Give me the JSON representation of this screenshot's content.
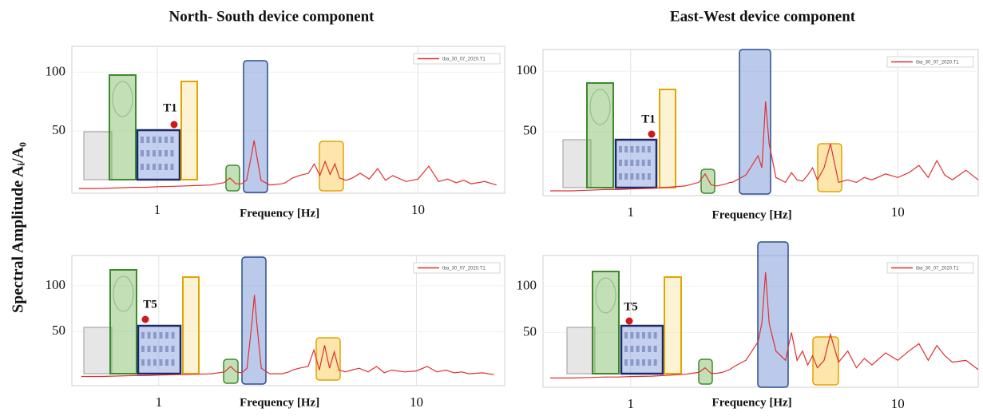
{
  "column_titles": [
    "North- South device component",
    "East-West device component"
  ],
  "y_label": "Spectral Amplitude Aᵢ/A₀",
  "chart_data": [
    {
      "type": "line",
      "x_label": "Frequency [Hz]",
      "annotation": "T1",
      "log_x": true,
      "grid": true,
      "xlim": [
        0.47,
        21.5
      ],
      "ylim": [
        -3,
        122
      ],
      "xticks": [
        1,
        10
      ],
      "yticks": [
        50,
        100
      ],
      "series": [
        {
          "name": "tba_30_07_2020.T1",
          "color": "#e03030",
          "x": [
            0.5,
            0.6,
            0.7,
            0.8,
            0.9,
            1.0,
            1.2,
            1.4,
            1.6,
            1.8,
            1.9,
            2.0,
            2.1,
            2.2,
            2.3,
            2.35,
            2.4,
            2.5,
            2.7,
            3.0,
            3.1,
            3.2,
            3.3,
            3.5,
            3.8,
            4.0,
            4.2,
            4.4,
            4.6,
            4.8,
            5.0,
            5.3,
            5.6,
            6.0,
            6.5,
            7.0,
            7.5,
            8.0,
            9.0,
            10,
            11,
            12,
            13,
            14,
            15,
            16,
            18,
            20
          ],
          "values": [
            1,
            1,
            1.5,
            2,
            2,
            2.5,
            3,
            3.5,
            4,
            6,
            10,
            5,
            5,
            8,
            30,
            42,
            30,
            8,
            4,
            5,
            6,
            8,
            10,
            12,
            14,
            22,
            12,
            24,
            13,
            22,
            10,
            8,
            10,
            14,
            9,
            18,
            8,
            12,
            7,
            9,
            20,
            7,
            9,
            6,
            8,
            5,
            7,
            4
          ]
        }
      ]
    },
    {
      "type": "line",
      "x_label": "Frequency [Hz]",
      "annotation": "T1",
      "log_x": true,
      "grid": true,
      "xlim": [
        0.47,
        20
      ],
      "ylim": [
        -3,
        118
      ],
      "xticks": [
        1,
        10
      ],
      "yticks": [
        50,
        100
      ],
      "series": [
        {
          "name": "tba_30_07_2020.T1",
          "color": "#e03030",
          "x": [
            0.5,
            0.6,
            0.7,
            0.8,
            0.9,
            1.0,
            1.2,
            1.4,
            1.6,
            1.8,
            1.9,
            2.0,
            2.1,
            2.2,
            2.3,
            2.35,
            2.4,
            2.5,
            2.7,
            3.0,
            3.1,
            3.2,
            3.3,
            3.5,
            3.8,
            4.0,
            4.2,
            4.4,
            4.6,
            4.8,
            5.0,
            5.3,
            5.6,
            6.0,
            6.5,
            7.0,
            7.5,
            8.0,
            9.0,
            10,
            11,
            12,
            13,
            14,
            15,
            16,
            18,
            20
          ],
          "values": [
            1,
            1,
            1.5,
            2,
            2,
            2.5,
            3,
            4,
            5,
            8,
            15,
            6,
            5,
            6,
            7,
            8,
            8,
            10,
            14,
            30,
            20,
            75,
            40,
            12,
            8,
            16,
            10,
            9,
            14,
            20,
            10,
            20,
            40,
            8,
            10,
            8,
            12,
            10,
            15,
            12,
            16,
            22,
            12,
            26,
            14,
            10,
            18,
            10
          ]
        }
      ]
    },
    {
      "type": "line",
      "x_label": "Frequency [Hz]",
      "annotation": "T5",
      "log_x": true,
      "grid": true,
      "xlim": [
        0.46,
        22
      ],
      "ylim": [
        -9,
        133
      ],
      "xticks": [
        1,
        10
      ],
      "yticks": [
        50,
        100
      ],
      "series": [
        {
          "name": "tba_30_07_2020.T1",
          "color": "#e03030",
          "x": [
            0.5,
            0.6,
            0.7,
            0.8,
            0.9,
            1.0,
            1.2,
            1.4,
            1.6,
            1.8,
            1.9,
            2.0,
            2.1,
            2.2,
            2.3,
            2.35,
            2.4,
            2.5,
            2.7,
            3.0,
            3.1,
            3.2,
            3.3,
            3.5,
            3.8,
            4.0,
            4.2,
            4.4,
            4.6,
            4.8,
            5.0,
            5.3,
            5.6,
            6.0,
            6.5,
            7.0,
            7.5,
            8.0,
            9.0,
            10,
            11,
            12,
            13,
            14,
            15,
            16,
            18,
            20
          ],
          "values": [
            1,
            1,
            1.5,
            2,
            2,
            2.5,
            3,
            3.5,
            4,
            6,
            12,
            6,
            5,
            10,
            60,
            90,
            60,
            10,
            4,
            4,
            5,
            6,
            8,
            10,
            12,
            30,
            8,
            35,
            10,
            28,
            8,
            6,
            8,
            10,
            6,
            12,
            5,
            8,
            6,
            7,
            12,
            6,
            8,
            5,
            6,
            4,
            5,
            3
          ]
        }
      ]
    },
    {
      "type": "line",
      "x_label": "Frequency [Hz]",
      "annotation": "T5",
      "log_x": true,
      "grid": true,
      "xlim": [
        0.47,
        20
      ],
      "ylim": [
        -9,
        133
      ],
      "xticks": [
        1,
        10
      ],
      "yticks": [
        50,
        100
      ],
      "series": [
        {
          "name": "tba_30_07_2020.T1",
          "color": "#e03030",
          "x": [
            0.5,
            0.6,
            0.7,
            0.8,
            0.9,
            1.0,
            1.2,
            1.4,
            1.6,
            1.8,
            1.9,
            2.0,
            2.1,
            2.2,
            2.3,
            2.35,
            2.4,
            2.5,
            2.7,
            3.0,
            3.1,
            3.2,
            3.3,
            3.5,
            3.8,
            4.0,
            4.2,
            4.4,
            4.6,
            4.8,
            5.0,
            5.3,
            5.6,
            6.0,
            6.5,
            7.0,
            7.5,
            8.0,
            9.0,
            10,
            11,
            12,
            13,
            14,
            15,
            16,
            18,
            20
          ],
          "values": [
            1,
            1,
            1.5,
            2,
            2,
            2.5,
            3,
            4,
            5,
            7,
            12,
            6,
            6,
            7,
            9,
            10,
            12,
            15,
            20,
            40,
            60,
            115,
            60,
            30,
            20,
            50,
            20,
            30,
            15,
            25,
            12,
            20,
            48,
            18,
            30,
            12,
            22,
            15,
            28,
            20,
            30,
            38,
            20,
            36,
            25,
            18,
            20,
            10
          ]
        }
      ]
    }
  ]
}
